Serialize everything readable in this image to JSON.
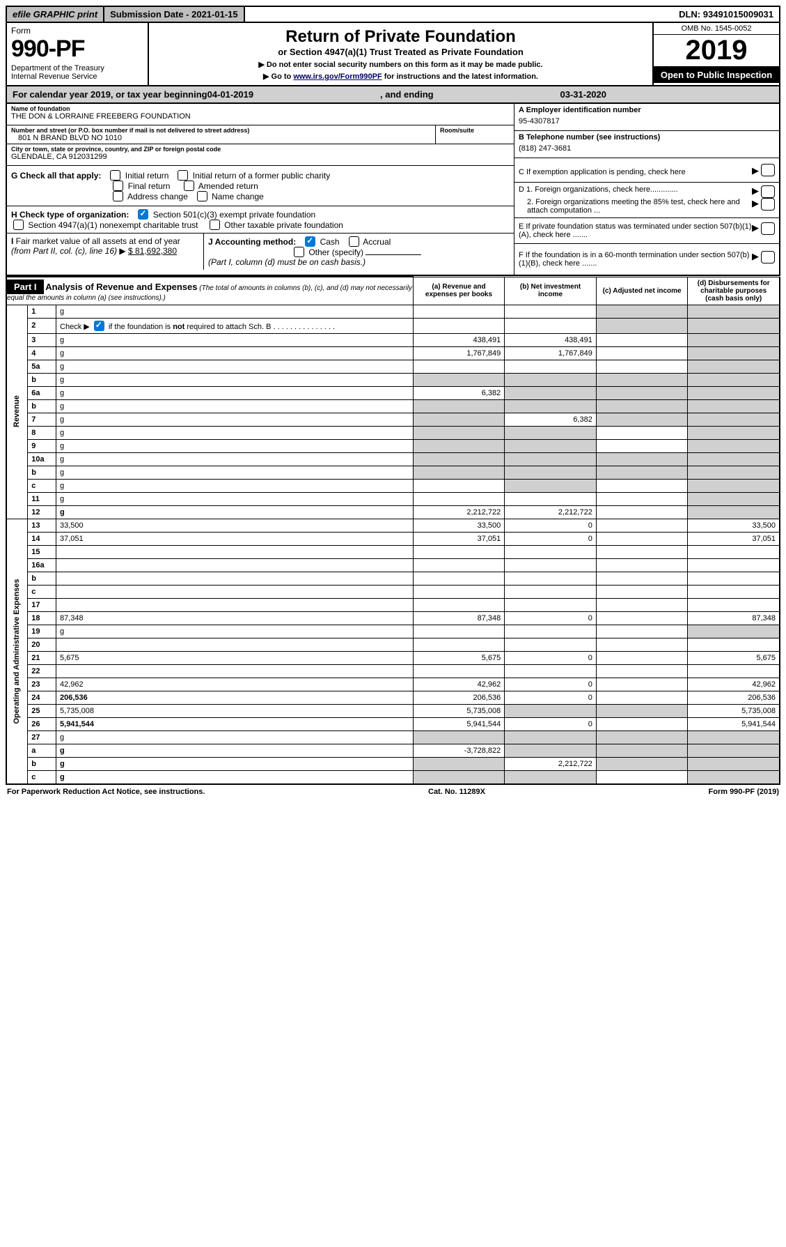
{
  "topbar": {
    "efile": "efile GRAPHIC print",
    "subdate_label": "Submission Date - ",
    "subdate": "2021-01-15",
    "dln_label": "DLN: ",
    "dln": "93491015009031"
  },
  "header": {
    "form_word": "Form",
    "form_number": "990-PF",
    "dept": "Department of the Treasury",
    "irs": "Internal Revenue Service",
    "title": "Return of Private Foundation",
    "subtitle": "or Section 4947(a)(1) Trust Treated as Private Foundation",
    "note1": "▶ Do not enter social security numbers on this form as it may be made public.",
    "note2_pre": "▶ Go to ",
    "note2_link": "www.irs.gov/Form990PF",
    "note2_post": " for instructions and the latest information.",
    "omb": "OMB No. 1545-0052",
    "year": "2019",
    "open": "Open to Public Inspection"
  },
  "calyear": {
    "pre": "For calendar year 2019, or tax year beginning ",
    "begin": "04-01-2019",
    "mid": ", and ending ",
    "end": "03-31-2020"
  },
  "ident": {
    "name_label": "Name of foundation",
    "name": "THE DON & LORRAINE FREEBERG FOUNDATION",
    "addr_label": "Number and street (or P.O. box number if mail is not delivered to street address)",
    "addr": "801 N BRAND BLVD NO 1010",
    "room_label": "Room/suite",
    "city_label": "City or town, state or province, country, and ZIP or foreign postal code",
    "city": "GLENDALE, CA  912031299",
    "A_label": "A Employer identification number",
    "A": "95-4307817",
    "B_label": "B Telephone number (see instructions)",
    "B": "(818) 247-3681",
    "C": "C If exemption application is pending, check here",
    "D1": "D 1. Foreign organizations, check here.............",
    "D2": "2. Foreign organizations meeting the 85% test, check here and attach computation ...",
    "E": "E  If private foundation status was terminated under section 507(b)(1)(A), check here .......",
    "F": "F  If the foundation is in a 60-month termination under section 507(b)(1)(B), check here .......",
    "G_label": "G Check all that apply:",
    "G_opts": [
      "Initial return",
      "Initial return of a former public charity",
      "Final return",
      "Amended return",
      "Address change",
      "Name change"
    ],
    "H_label": "H Check type of organization:",
    "H_opt1": "Section 501(c)(3) exempt private foundation",
    "H_opt2": "Section 4947(a)(1) nonexempt charitable trust",
    "H_opt3": "Other taxable private foundation",
    "I_label": "I Fair market value of all assets at end of year (from Part II, col. (c), line 16) ▶",
    "I_value": "$  81,692,380",
    "J_label": "J Accounting method:",
    "J_cash": "Cash",
    "J_accrual": "Accrual",
    "J_other": "Other (specify)",
    "J_note": "(Part I, column (d) must be on cash basis.)"
  },
  "part1": {
    "label": "Part I",
    "title": "Analysis of Revenue and Expenses",
    "note": "(The total of amounts in columns (b), (c), and (d) may not necessarily equal the amounts in column (a) (see instructions).)",
    "cols": {
      "a": "(a)   Revenue and expenses per books",
      "b": "(b)  Net investment income",
      "c": "(c)  Adjusted net income",
      "d": "(d)  Disbursements for charitable purposes (cash basis only)"
    }
  },
  "vert": {
    "rev": "Revenue",
    "exp": "Operating and Administrative Expenses"
  },
  "rows": [
    {
      "n": "1",
      "d": "g",
      "a": "",
      "b": "",
      "c": "g"
    },
    {
      "n": "2",
      "d": "g",
      "a": "",
      "b": "",
      "c": "g",
      "html": true
    },
    {
      "n": "3",
      "d": "g",
      "a": "438,491",
      "b": "438,491",
      "c": ""
    },
    {
      "n": "4",
      "d": "g",
      "a": "1,767,849",
      "b": "1,767,849",
      "c": ""
    },
    {
      "n": "5a",
      "d": "g",
      "a": "",
      "b": "",
      "c": ""
    },
    {
      "n": "b",
      "d": "g",
      "a": "g",
      "b": "g",
      "c": "g"
    },
    {
      "n": "6a",
      "d": "g",
      "a": "6,382",
      "b": "g",
      "c": "g"
    },
    {
      "n": "b",
      "d": "g",
      "a": "g",
      "b": "g",
      "c": "g"
    },
    {
      "n": "7",
      "d": "g",
      "a": "g",
      "b": "6,382",
      "c": "g"
    },
    {
      "n": "8",
      "d": "g",
      "a": "g",
      "b": "g",
      "c": ""
    },
    {
      "n": "9",
      "d": "g",
      "a": "g",
      "b": "g",
      "c": ""
    },
    {
      "n": "10a",
      "d": "g",
      "a": "g",
      "b": "g",
      "c": "g"
    },
    {
      "n": "b",
      "d": "g",
      "a": "g",
      "b": "g",
      "c": "g"
    },
    {
      "n": "c",
      "d": "g",
      "a": "",
      "b": "g",
      "c": ""
    },
    {
      "n": "11",
      "d": "g",
      "a": "",
      "b": "",
      "c": ""
    },
    {
      "n": "12",
      "d": "g",
      "a": "2,212,722",
      "b": "2,212,722",
      "c": "",
      "bold": true
    },
    {
      "n": "13",
      "d": "33,500",
      "a": "33,500",
      "b": "0",
      "c": ""
    },
    {
      "n": "14",
      "d": "37,051",
      "a": "37,051",
      "b": "0",
      "c": ""
    },
    {
      "n": "15",
      "d": "",
      "a": "",
      "b": "",
      "c": ""
    },
    {
      "n": "16a",
      "d": "",
      "a": "",
      "b": "",
      "c": ""
    },
    {
      "n": "b",
      "d": "",
      "a": "",
      "b": "",
      "c": ""
    },
    {
      "n": "c",
      "d": "",
      "a": "",
      "b": "",
      "c": ""
    },
    {
      "n": "17",
      "d": "",
      "a": "",
      "b": "",
      "c": ""
    },
    {
      "n": "18",
      "d": "87,348",
      "a": "87,348",
      "b": "0",
      "c": ""
    },
    {
      "n": "19",
      "d": "g",
      "a": "",
      "b": "",
      "c": ""
    },
    {
      "n": "20",
      "d": "",
      "a": "",
      "b": "",
      "c": ""
    },
    {
      "n": "21",
      "d": "5,675",
      "a": "5,675",
      "b": "0",
      "c": ""
    },
    {
      "n": "22",
      "d": "",
      "a": "",
      "b": "",
      "c": ""
    },
    {
      "n": "23",
      "d": "42,962",
      "a": "42,962",
      "b": "0",
      "c": ""
    },
    {
      "n": "24",
      "d": "206,536",
      "a": "206,536",
      "b": "0",
      "c": "",
      "bold": true
    },
    {
      "n": "25",
      "d": "5,735,008",
      "a": "5,735,008",
      "b": "g",
      "c": "g"
    },
    {
      "n": "26",
      "d": "5,941,544",
      "a": "5,941,544",
      "b": "0",
      "c": "",
      "bold": true
    },
    {
      "n": "27",
      "d": "g",
      "a": "g",
      "b": "g",
      "c": "g"
    },
    {
      "n": "a",
      "d": "g",
      "a": "-3,728,822",
      "b": "g",
      "c": "g",
      "bold": true
    },
    {
      "n": "b",
      "d": "g",
      "a": "g",
      "b": "2,212,722",
      "c": "g",
      "bold": true
    },
    {
      "n": "c",
      "d": "g",
      "a": "g",
      "b": "g",
      "c": "",
      "bold": true
    }
  ],
  "footer": {
    "left": "For Paperwork Reduction Act Notice, see instructions.",
    "mid": "Cat. No. 11289X",
    "right": "Form 990-PF (2019)"
  }
}
